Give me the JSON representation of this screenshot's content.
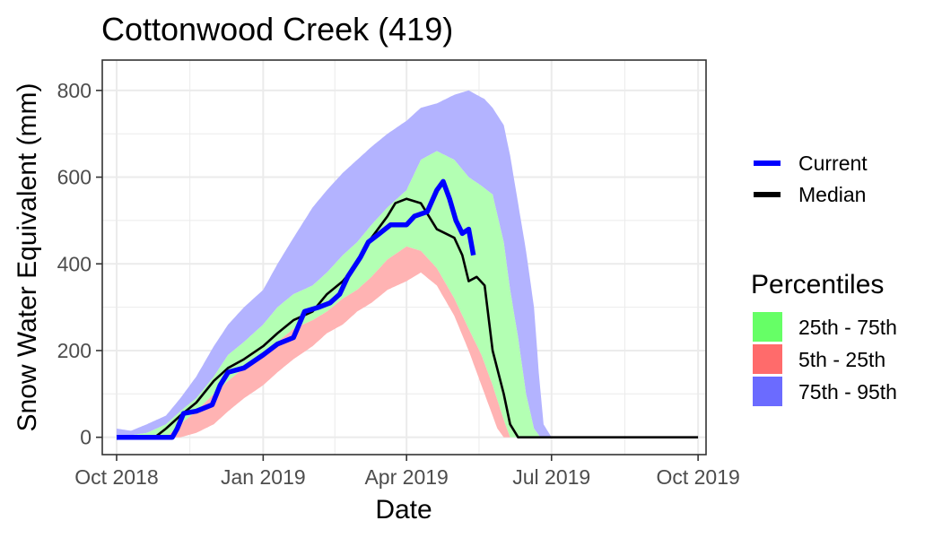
{
  "chart_data": {
    "type": "area",
    "title": "Cottonwood Creek (419)",
    "xlabel": "Date",
    "ylabel": "Snow Water Equivalent (mm)",
    "xlim": [
      "2018-09-22",
      "2019-10-06"
    ],
    "ylim": [
      -40,
      870
    ],
    "x_ticks": [
      "2018-10-01",
      "2019-01-01",
      "2019-04-01",
      "2019-07-01",
      "2019-10-01"
    ],
    "x_tick_labels": [
      "Oct 2018",
      "Jan 2019",
      "Apr 2019",
      "Jul 2019",
      "Oct 2019"
    ],
    "y_ticks": [
      0,
      200,
      400,
      600,
      800
    ],
    "y_tick_labels": [
      "0",
      "200",
      "400",
      "600",
      "800"
    ],
    "grid": true,
    "legend_placement": "right",
    "colors": {
      "band_75_95": "#b3b3ff",
      "band_25_75": "#b3ffb3",
      "band_5_25": "#ffb3b3",
      "current": "#0000ff",
      "median": "#000000",
      "grid": "#ebebeb",
      "border": "#333333",
      "key_25_75": "#66ff66",
      "key_5_25": "#ff6b6b",
      "key_75_95": "#6b6bff"
    },
    "legend": {
      "lines": [
        {
          "label": "Current",
          "color": "#0000ff"
        },
        {
          "label": "Median",
          "color": "#000000"
        }
      ],
      "percentiles_title": "Percentiles",
      "percentiles": [
        {
          "label": "25th - 75th",
          "color": "#66ff66"
        },
        {
          "label": "5th - 25th",
          "color": "#ff6b6b"
        },
        {
          "label": "75th - 95th",
          "color": "#6b6bff"
        }
      ]
    },
    "series": [
      {
        "name": "95th percentile",
        "x": [
          "2018-10-01",
          "2018-10-10",
          "2018-10-20",
          "2018-11-01",
          "2018-11-10",
          "2018-11-20",
          "2018-12-01",
          "2018-12-10",
          "2018-12-20",
          "2019-01-01",
          "2019-01-10",
          "2019-01-20",
          "2019-02-01",
          "2019-02-10",
          "2019-02-20",
          "2019-03-01",
          "2019-03-10",
          "2019-03-20",
          "2019-04-01",
          "2019-04-10",
          "2019-04-20",
          "2019-05-01",
          "2019-05-10",
          "2019-05-20",
          "2019-05-25",
          "2019-06-01",
          "2019-06-05",
          "2019-06-10",
          "2019-06-15",
          "2019-06-20",
          "2019-06-23",
          "2019-06-26",
          "2019-07-01",
          "2019-10-01",
          "2019-10-02"
        ],
        "values": [
          20,
          15,
          30,
          50,
          90,
          140,
          210,
          260,
          300,
          340,
          400,
          460,
          530,
          570,
          610,
          640,
          670,
          700,
          730,
          760,
          770,
          790,
          800,
          780,
          760,
          720,
          650,
          540,
          430,
          300,
          150,
          30,
          0,
          0,
          25
        ]
      },
      {
        "name": "75th percentile",
        "x": [
          "2018-10-01",
          "2018-10-20",
          "2018-11-01",
          "2018-11-10",
          "2018-11-20",
          "2018-12-01",
          "2018-12-10",
          "2018-12-20",
          "2019-01-01",
          "2019-01-10",
          "2019-01-20",
          "2019-02-01",
          "2019-02-10",
          "2019-02-20",
          "2019-03-01",
          "2019-03-10",
          "2019-03-20",
          "2019-04-01",
          "2019-04-10",
          "2019-04-20",
          "2019-05-01",
          "2019-05-10",
          "2019-05-18",
          "2019-05-25",
          "2019-06-01",
          "2019-06-05",
          "2019-06-10",
          "2019-06-15",
          "2019-06-20",
          "2019-06-24",
          "2019-07-01",
          "2019-10-01"
        ],
        "values": [
          0,
          10,
          30,
          60,
          90,
          140,
          190,
          220,
          260,
          300,
          330,
          350,
          380,
          420,
          450,
          490,
          530,
          570,
          640,
          660,
          640,
          600,
          580,
          560,
          450,
          340,
          230,
          100,
          20,
          0,
          0,
          0
        ]
      },
      {
        "name": "Median",
        "x": [
          "2018-10-01",
          "2018-10-25",
          "2018-11-01",
          "2018-11-10",
          "2018-11-20",
          "2018-12-01",
          "2018-12-10",
          "2018-12-20",
          "2019-01-01",
          "2019-01-10",
          "2019-01-20",
          "2019-02-01",
          "2019-02-10",
          "2019-02-20",
          "2019-03-01",
          "2019-03-10",
          "2019-03-20",
          "2019-03-25",
          "2019-04-01",
          "2019-04-10",
          "2019-04-20",
          "2019-05-01",
          "2019-05-06",
          "2019-05-10",
          "2019-05-15",
          "2019-05-20",
          "2019-05-25",
          "2019-06-01",
          "2019-06-05",
          "2019-06-10",
          "2019-06-15",
          "2019-07-01",
          "2019-10-01"
        ],
        "values": [
          0,
          0,
          20,
          50,
          80,
          130,
          160,
          180,
          210,
          240,
          270,
          290,
          330,
          360,
          400,
          460,
          510,
          540,
          550,
          540,
          480,
          460,
          420,
          360,
          370,
          350,
          200,
          100,
          30,
          0,
          0,
          0,
          0
        ]
      },
      {
        "name": "25th percentile",
        "x": [
          "2018-10-01",
          "2018-11-01",
          "2018-11-10",
          "2018-11-20",
          "2018-12-01",
          "2018-12-10",
          "2018-12-20",
          "2019-01-01",
          "2019-01-10",
          "2019-01-20",
          "2019-02-01",
          "2019-02-10",
          "2019-02-20",
          "2019-03-01",
          "2019-03-10",
          "2019-03-20",
          "2019-04-01",
          "2019-04-10",
          "2019-04-20",
          "2019-05-01",
          "2019-05-10",
          "2019-05-18",
          "2019-05-25",
          "2019-06-01",
          "2019-06-05",
          "2019-06-10",
          "2019-07-01",
          "2019-10-01"
        ],
        "values": [
          0,
          0,
          30,
          60,
          100,
          130,
          160,
          190,
          220,
          250,
          270,
          290,
          320,
          340,
          370,
          410,
          440,
          430,
          390,
          320,
          250,
          190,
          120,
          40,
          0,
          0,
          0,
          0
        ]
      },
      {
        "name": "5th percentile",
        "x": [
          "2018-10-01",
          "2018-11-10",
          "2018-11-20",
          "2018-12-01",
          "2018-12-10",
          "2018-12-20",
          "2019-01-01",
          "2019-01-10",
          "2019-01-20",
          "2019-02-01",
          "2019-02-10",
          "2019-02-20",
          "2019-03-01",
          "2019-03-10",
          "2019-03-20",
          "2019-04-01",
          "2019-04-10",
          "2019-04-20",
          "2019-05-01",
          "2019-05-10",
          "2019-05-20",
          "2019-05-28",
          "2019-06-01",
          "2019-07-01",
          "2019-10-01"
        ],
        "values": [
          0,
          0,
          10,
          30,
          60,
          90,
          120,
          150,
          180,
          210,
          240,
          260,
          290,
          310,
          340,
          360,
          380,
          350,
          280,
          200,
          100,
          20,
          0,
          0,
          0
        ]
      },
      {
        "name": "Current",
        "x": [
          "2018-10-01",
          "2018-11-05",
          "2018-11-08",
          "2018-11-12",
          "2018-11-20",
          "2018-11-30",
          "2018-12-05",
          "2018-12-10",
          "2018-12-20",
          "2019-01-01",
          "2019-01-10",
          "2019-01-20",
          "2019-01-27",
          "2019-02-05",
          "2019-02-12",
          "2019-02-18",
          "2019-02-23",
          "2019-03-03",
          "2019-03-08",
          "2019-03-15",
          "2019-03-22",
          "2019-04-01",
          "2019-04-06",
          "2019-04-14",
          "2019-04-20",
          "2019-04-24",
          "2019-04-28",
          "2019-05-02",
          "2019-05-06",
          "2019-05-10",
          "2019-05-13"
        ],
        "values": [
          0,
          0,
          20,
          55,
          60,
          75,
          120,
          150,
          160,
          190,
          215,
          230,
          290,
          300,
          310,
          330,
          370,
          415,
          450,
          470,
          490,
          490,
          510,
          520,
          570,
          590,
          550,
          500,
          470,
          480,
          420
        ]
      }
    ]
  }
}
